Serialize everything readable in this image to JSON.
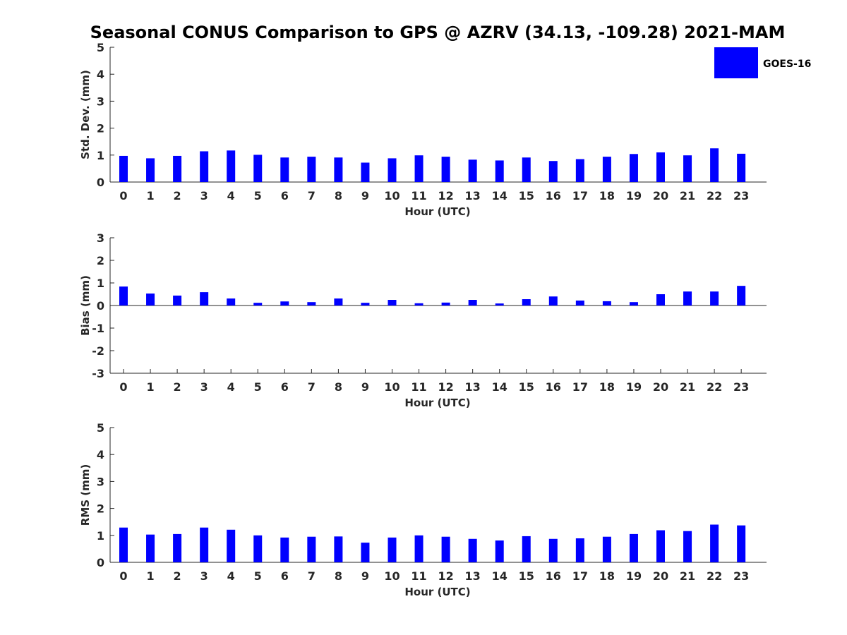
{
  "title": "Seasonal CONUS Comparison to GPS @ AZRV (34.13, -109.28) 2021-MAM",
  "legend": {
    "label": "GOES-16",
    "color": "#0000ff",
    "placement": "top-right"
  },
  "chart_data": [
    {
      "type": "bar",
      "id": "std",
      "xlabel": "Hour (UTC)",
      "ylabel": "Std. Dev. (mm)",
      "ylim": [
        0,
        5
      ],
      "yticks": [
        "0",
        "1",
        "2",
        "3",
        "4",
        "5"
      ],
      "categories": [
        "0",
        "1",
        "2",
        "3",
        "4",
        "5",
        "6",
        "7",
        "8",
        "9",
        "10",
        "11",
        "12",
        "13",
        "14",
        "15",
        "16",
        "17",
        "18",
        "19",
        "20",
        "21",
        "22",
        "23"
      ],
      "series": [
        {
          "name": "GOES-16",
          "values": [
            0.97,
            0.88,
            0.97,
            1.14,
            1.17,
            1.01,
            0.91,
            0.94,
            0.91,
            0.72,
            0.88,
            0.99,
            0.94,
            0.83,
            0.8,
            0.91,
            0.78,
            0.85,
            0.94,
            1.04,
            1.1,
            0.99,
            1.25,
            1.05
          ]
        }
      ]
    },
    {
      "type": "bar",
      "id": "bias",
      "xlabel": "Hour (UTC)",
      "ylabel": "Bias (mm)",
      "ylim": [
        -3,
        3
      ],
      "yticks": [
        "-3",
        "-2",
        "-1",
        "0",
        "1",
        "2",
        "3"
      ],
      "categories": [
        "0",
        "1",
        "2",
        "3",
        "4",
        "5",
        "6",
        "7",
        "8",
        "9",
        "10",
        "11",
        "12",
        "13",
        "14",
        "15",
        "16",
        "17",
        "18",
        "19",
        "20",
        "21",
        "22",
        "23"
      ],
      "series": [
        {
          "name": "GOES-16",
          "values": [
            0.84,
            0.53,
            0.44,
            0.59,
            0.31,
            0.12,
            0.18,
            0.15,
            0.31,
            0.12,
            0.25,
            0.1,
            0.13,
            0.25,
            0.09,
            0.28,
            0.4,
            0.22,
            0.19,
            0.15,
            0.5,
            0.62,
            0.62,
            0.87
          ]
        }
      ]
    },
    {
      "type": "bar",
      "id": "rms",
      "xlabel": "Hour (UTC)",
      "ylabel": "RMS (mm)",
      "ylim": [
        0,
        5
      ],
      "yticks": [
        "0",
        "1",
        "2",
        "3",
        "4",
        "5"
      ],
      "categories": [
        "0",
        "1",
        "2",
        "3",
        "4",
        "5",
        "6",
        "7",
        "8",
        "9",
        "10",
        "11",
        "12",
        "13",
        "14",
        "15",
        "16",
        "17",
        "18",
        "19",
        "20",
        "21",
        "22",
        "23"
      ],
      "series": [
        {
          "name": "GOES-16",
          "values": [
            1.29,
            1.03,
            1.05,
            1.29,
            1.21,
            1.0,
            0.92,
            0.95,
            0.96,
            0.73,
            0.92,
            1.0,
            0.95,
            0.87,
            0.81,
            0.97,
            0.87,
            0.89,
            0.95,
            1.05,
            1.19,
            1.16,
            1.4,
            1.37
          ]
        }
      ]
    }
  ]
}
